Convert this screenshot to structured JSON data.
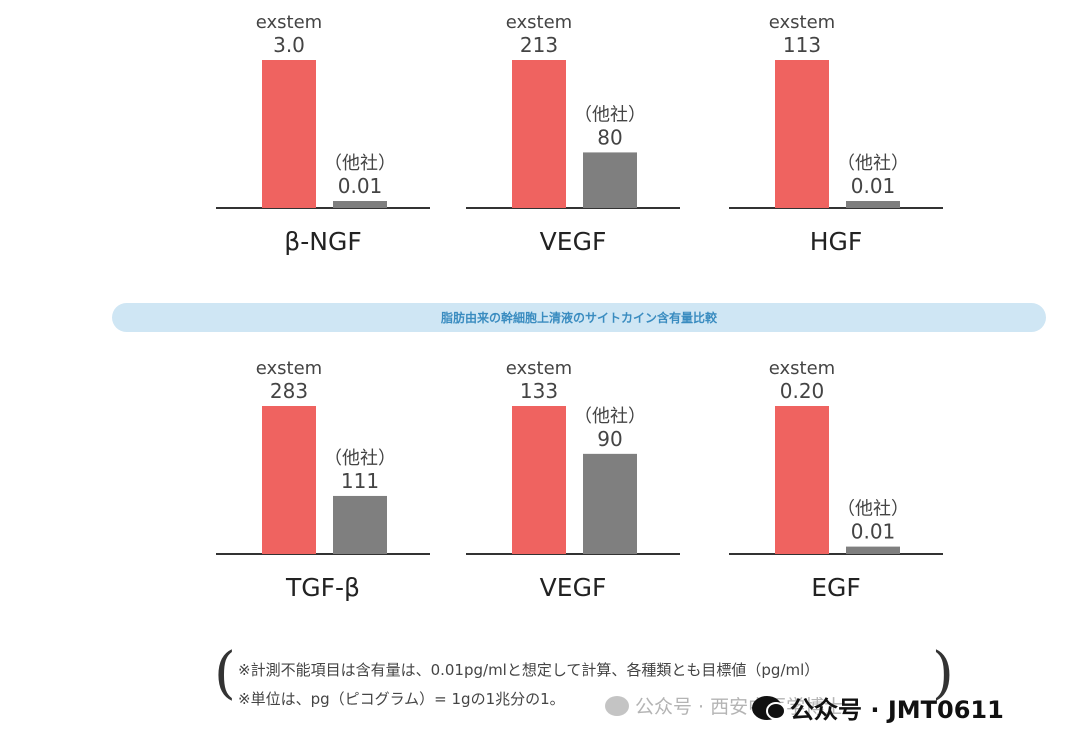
{
  "banner": "脂肪由来の幹細胞上清液のサイトカイン含有量比較",
  "chart_data": [
    {
      "type": "bar",
      "xlabel": "β-NGF",
      "categories": [
        "exstem",
        "（他社）"
      ],
      "values": [
        3.0,
        0.01
      ],
      "value_labels": [
        "3.0",
        "0.01"
      ],
      "colors": [
        "#ef6360",
        "#7f7f7f"
      ]
    },
    {
      "type": "bar",
      "xlabel": "VEGF",
      "categories": [
        "exstem",
        "（他社）"
      ],
      "values": [
        213,
        80
      ],
      "value_labels": [
        "213",
        "80"
      ],
      "colors": [
        "#ef6360",
        "#7f7f7f"
      ]
    },
    {
      "type": "bar",
      "xlabel": "HGF",
      "categories": [
        "exstem",
        "（他社）"
      ],
      "values": [
        113,
        0.01
      ],
      "value_labels": [
        "113",
        "0.01"
      ],
      "colors": [
        "#ef6360",
        "#7f7f7f"
      ]
    },
    {
      "type": "bar",
      "xlabel": "TGF-β",
      "categories": [
        "exstem",
        "（他社）"
      ],
      "values": [
        283,
        111
      ],
      "value_labels": [
        "283",
        "111"
      ],
      "colors": [
        "#ef6360",
        "#7f7f7f"
      ]
    },
    {
      "type": "bar",
      "xlabel": "VEGF",
      "categories": [
        "exstem",
        "（他社）"
      ],
      "values": [
        133,
        90
      ],
      "value_labels": [
        "133",
        "90"
      ],
      "colors": [
        "#ef6360",
        "#7f7f7f"
      ]
    },
    {
      "type": "bar",
      "xlabel": "EGF",
      "categories": [
        "exstem",
        "（他社）"
      ],
      "values": [
        0.2,
        0.01
      ],
      "value_labels": [
        "0.20",
        "0.01"
      ],
      "colors": [
        "#ef6360",
        "#7f7f7f"
      ]
    }
  ],
  "notes": {
    "line1": "※計測不能項目は含有量は、0.01pg/mlと想定して計算、各種類とも目標値（pg/ml）",
    "line2": "※単位は、pg（ピコグラム）= 1gの1兆分の1。"
  },
  "watermark": "公众号 · 西安中医学博士",
  "account": "公众号 · JMT0611"
}
